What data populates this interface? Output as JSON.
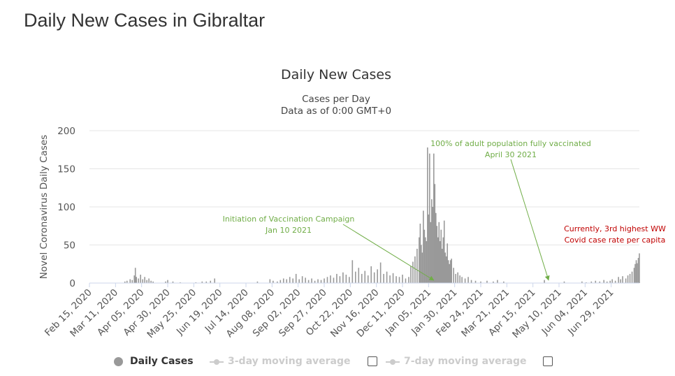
{
  "page": {
    "heading": "Daily New Cases in Gibraltar"
  },
  "chart_data": {
    "type": "bar",
    "title": "Daily New Cases",
    "subtitle_line1": "Cases per Day",
    "subtitle_line2": "Data as of 0:00 GMT+0",
    "ylabel": "Novel Coronavirus Daily Cases",
    "xlabel": "",
    "ylim": [
      0,
      200
    ],
    "y_ticks": [
      0,
      50,
      100,
      150,
      200
    ],
    "x_range": [
      "2020-02-15",
      "2021-07-26"
    ],
    "x_ticks": [
      {
        "date": "2020-02-15",
        "label": "Feb 15, 2020"
      },
      {
        "date": "2020-03-11",
        "label": "Mar 11, 2020"
      },
      {
        "date": "2020-04-05",
        "label": "Apr 05, 2020"
      },
      {
        "date": "2020-04-30",
        "label": "Apr 30, 2020"
      },
      {
        "date": "2020-05-25",
        "label": "May 25, 2020"
      },
      {
        "date": "2020-06-19",
        "label": "Jun 19, 2020"
      },
      {
        "date": "2020-07-14",
        "label": "Jul 14, 2020"
      },
      {
        "date": "2020-08-08",
        "label": "Aug 08, 2020"
      },
      {
        "date": "2020-09-02",
        "label": "Sep 02, 2020"
      },
      {
        "date": "2020-09-27",
        "label": "Sep 27, 2020"
      },
      {
        "date": "2020-10-22",
        "label": "Oct 22, 2020"
      },
      {
        "date": "2020-11-16",
        "label": "Nov 16, 2020"
      },
      {
        "date": "2020-12-11",
        "label": "Dec 11, 2020"
      },
      {
        "date": "2021-01-05",
        "label": "Jan 05, 2021"
      },
      {
        "date": "2021-01-30",
        "label": "Jan 30, 2021"
      },
      {
        "date": "2021-02-24",
        "label": "Feb 24, 2021"
      },
      {
        "date": "2021-03-21",
        "label": "Mar 21, 2021"
      },
      {
        "date": "2021-04-15",
        "label": "Apr 15, 2021"
      },
      {
        "date": "2021-05-10",
        "label": "May 10, 2021"
      },
      {
        "date": "2021-06-04",
        "label": "Jun 04, 2021"
      },
      {
        "date": "2021-06-29",
        "label": "Jun 29, 2021"
      }
    ],
    "grid": true,
    "bar_color": "#999999",
    "series": [
      {
        "name": "Daily Cases",
        "points": [
          [
            "2020-03-20",
            2
          ],
          [
            "2020-03-22",
            3
          ],
          [
            "2020-03-25",
            5
          ],
          [
            "2020-03-27",
            4
          ],
          [
            "2020-03-29",
            10
          ],
          [
            "2020-03-30",
            20
          ],
          [
            "2020-03-31",
            8
          ],
          [
            "2020-04-02",
            6
          ],
          [
            "2020-04-04",
            11
          ],
          [
            "2020-04-06",
            5
          ],
          [
            "2020-04-08",
            8
          ],
          [
            "2020-04-10",
            4
          ],
          [
            "2020-04-12",
            6
          ],
          [
            "2020-04-14",
            3
          ],
          [
            "2020-04-16",
            2
          ],
          [
            "2020-04-28",
            2
          ],
          [
            "2020-04-30",
            4
          ],
          [
            "2020-05-05",
            2
          ],
          [
            "2020-05-12",
            1
          ],
          [
            "2020-05-27",
            1
          ],
          [
            "2020-06-02",
            2
          ],
          [
            "2020-06-06",
            2
          ],
          [
            "2020-06-10",
            3
          ],
          [
            "2020-06-14",
            6
          ],
          [
            "2020-07-25",
            2
          ],
          [
            "2020-08-06",
            5
          ],
          [
            "2020-08-09",
            3
          ],
          [
            "2020-08-13",
            2
          ],
          [
            "2020-08-16",
            4
          ],
          [
            "2020-08-19",
            6
          ],
          [
            "2020-08-22",
            5
          ],
          [
            "2020-08-25",
            8
          ],
          [
            "2020-08-28",
            6
          ],
          [
            "2020-08-31",
            12
          ],
          [
            "2020-09-03",
            5
          ],
          [
            "2020-09-06",
            9
          ],
          [
            "2020-09-09",
            7
          ],
          [
            "2020-09-12",
            4
          ],
          [
            "2020-09-15",
            6
          ],
          [
            "2020-09-18",
            3
          ],
          [
            "2020-09-21",
            5
          ],
          [
            "2020-09-24",
            4
          ],
          [
            "2020-09-27",
            6
          ],
          [
            "2020-09-30",
            8
          ],
          [
            "2020-10-03",
            10
          ],
          [
            "2020-10-06",
            7
          ],
          [
            "2020-10-09",
            12
          ],
          [
            "2020-10-12",
            9
          ],
          [
            "2020-10-15",
            14
          ],
          [
            "2020-10-18",
            11
          ],
          [
            "2020-10-21",
            8
          ],
          [
            "2020-10-24",
            30
          ],
          [
            "2020-10-27",
            15
          ],
          [
            "2020-10-30",
            20
          ],
          [
            "2020-11-02",
            12
          ],
          [
            "2020-11-05",
            16
          ],
          [
            "2020-11-08",
            10
          ],
          [
            "2020-11-11",
            22
          ],
          [
            "2020-11-14",
            14
          ],
          [
            "2020-11-17",
            18
          ],
          [
            "2020-11-20",
            27
          ],
          [
            "2020-11-23",
            12
          ],
          [
            "2020-11-26",
            15
          ],
          [
            "2020-11-29",
            10
          ],
          [
            "2020-12-02",
            13
          ],
          [
            "2020-12-05",
            9
          ],
          [
            "2020-12-08",
            8
          ],
          [
            "2020-12-11",
            11
          ],
          [
            "2020-12-14",
            6
          ],
          [
            "2020-12-17",
            8
          ],
          [
            "2020-12-19",
            22
          ],
          [
            "2020-12-21",
            28
          ],
          [
            "2020-12-23",
            35
          ],
          [
            "2020-12-25",
            45
          ],
          [
            "2020-12-27",
            60
          ],
          [
            "2020-12-28",
            78
          ],
          [
            "2020-12-29",
            50
          ],
          [
            "2020-12-30",
            40
          ],
          [
            "2020-12-31",
            95
          ],
          [
            "2021-01-01",
            70
          ],
          [
            "2021-01-02",
            60
          ],
          [
            "2021-01-03",
            55
          ],
          [
            "2021-01-04",
            178
          ],
          [
            "2021-01-05",
            90
          ],
          [
            "2021-01-06",
            170
          ],
          [
            "2021-01-07",
            80
          ],
          [
            "2021-01-08",
            110
          ],
          [
            "2021-01-09",
            100
          ],
          [
            "2021-01-10",
            170
          ],
          [
            "2021-01-11",
            130
          ],
          [
            "2021-01-12",
            92
          ],
          [
            "2021-01-13",
            75
          ],
          [
            "2021-01-14",
            60
          ],
          [
            "2021-01-15",
            80
          ],
          [
            "2021-01-16",
            55
          ],
          [
            "2021-01-17",
            70
          ],
          [
            "2021-01-18",
            45
          ],
          [
            "2021-01-19",
            60
          ],
          [
            "2021-01-20",
            82
          ],
          [
            "2021-01-21",
            40
          ],
          [
            "2021-01-22",
            35
          ],
          [
            "2021-01-23",
            52
          ],
          [
            "2021-01-24",
            30
          ],
          [
            "2021-01-25",
            25
          ],
          [
            "2021-01-26",
            30
          ],
          [
            "2021-01-27",
            32
          ],
          [
            "2021-01-29",
            20
          ],
          [
            "2021-01-31",
            12
          ],
          [
            "2021-02-02",
            14
          ],
          [
            "2021-02-04",
            10
          ],
          [
            "2021-02-06",
            8
          ],
          [
            "2021-02-09",
            6
          ],
          [
            "2021-02-12",
            8
          ],
          [
            "2021-02-15",
            4
          ],
          [
            "2021-02-19",
            3
          ],
          [
            "2021-02-24",
            2
          ],
          [
            "2021-03-02",
            3
          ],
          [
            "2021-03-08",
            2
          ],
          [
            "2021-03-12",
            4
          ],
          [
            "2021-03-18",
            2
          ],
          [
            "2021-04-26",
            4
          ],
          [
            "2021-05-15",
            2
          ],
          [
            "2021-06-01",
            2
          ],
          [
            "2021-06-05",
            1
          ],
          [
            "2021-06-10",
            2
          ],
          [
            "2021-06-14",
            3
          ],
          [
            "2021-06-18",
            2
          ],
          [
            "2021-06-22",
            4
          ],
          [
            "2021-06-25",
            2
          ],
          [
            "2021-06-28",
            3
          ],
          [
            "2021-06-30",
            5
          ],
          [
            "2021-07-03",
            3
          ],
          [
            "2021-07-06",
            8
          ],
          [
            "2021-07-08",
            5
          ],
          [
            "2021-07-10",
            9
          ],
          [
            "2021-07-13",
            6
          ],
          [
            "2021-07-15",
            10
          ],
          [
            "2021-07-17",
            12
          ],
          [
            "2021-07-19",
            15
          ],
          [
            "2021-07-21",
            20
          ],
          [
            "2021-07-22",
            25
          ],
          [
            "2021-07-23",
            30
          ],
          [
            "2021-07-24",
            26
          ],
          [
            "2021-07-25",
            33
          ],
          [
            "2021-07-26",
            39
          ]
        ]
      }
    ],
    "annotations": [
      {
        "name": "vaccination-campaign",
        "lines": [
          "Initiation of Vaccination Campaign",
          "Jan 10 2021"
        ],
        "color": "#70AD47",
        "target_date": "2021-01-10"
      },
      {
        "name": "fully-vaccinated",
        "lines": [
          "100% of adult population fully vaccinated",
          "April 30 2021"
        ],
        "color": "#70AD47",
        "target_date": "2021-04-30"
      },
      {
        "name": "case-rate",
        "lines": [
          "Currently, 3rd highest WW",
          "Covid case rate per capita"
        ],
        "color": "#C00000"
      }
    ]
  },
  "legend": {
    "items": [
      {
        "label": "Daily Cases",
        "color": "#999999"
      },
      {
        "label": "3-day moving average",
        "color": "#cccccc"
      },
      {
        "label": "7-day moving average",
        "color": "#cccccc"
      }
    ]
  }
}
